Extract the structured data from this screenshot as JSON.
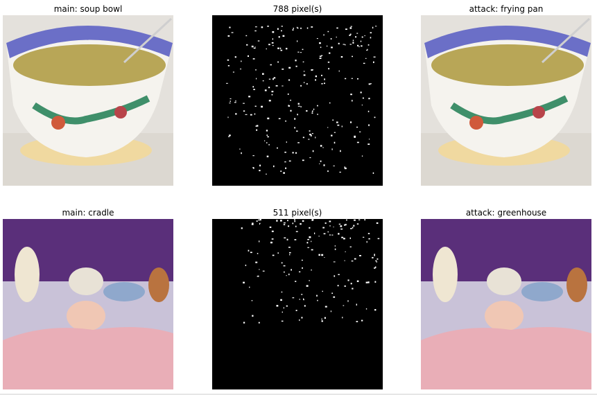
{
  "figure": {
    "rows": [
      {
        "main_title": "main: soup bowl",
        "mask_title": "788 pixel(s)",
        "attack_title": "attack: frying pan",
        "main_image": "soup-bowl-photo",
        "attack_image": "soup-bowl-photo-perturbed"
      },
      {
        "main_title": "main: cradle",
        "mask_title": "511 pixel(s)",
        "attack_title": "attack: greenhouse",
        "main_image": "baby-in-cradle-photo",
        "attack_image": "baby-in-cradle-photo-perturbed"
      }
    ]
  }
}
